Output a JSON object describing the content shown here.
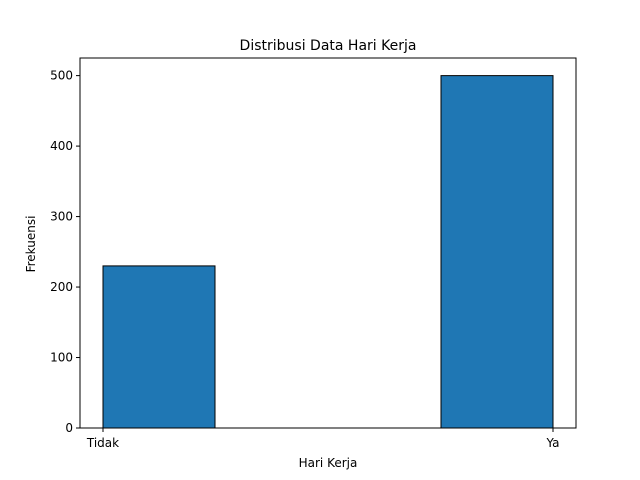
{
  "chart_data": {
    "type": "bar",
    "title": "Distribusi Data Hari Kerja",
    "xlabel": "Hari Kerja",
    "ylabel": "Frekuensi",
    "categories": [
      "Tidak",
      "Ya"
    ],
    "values": [
      230,
      500
    ],
    "ylim": [
      0,
      525
    ],
    "yticks": [
      0,
      100,
      200,
      300,
      400,
      500
    ],
    "grid": false,
    "legend": "none",
    "colors": {
      "bar_fill": "#1f77b4",
      "bar_edge": "#000000",
      "axis": "#000000",
      "background": "#ffffff"
    }
  }
}
